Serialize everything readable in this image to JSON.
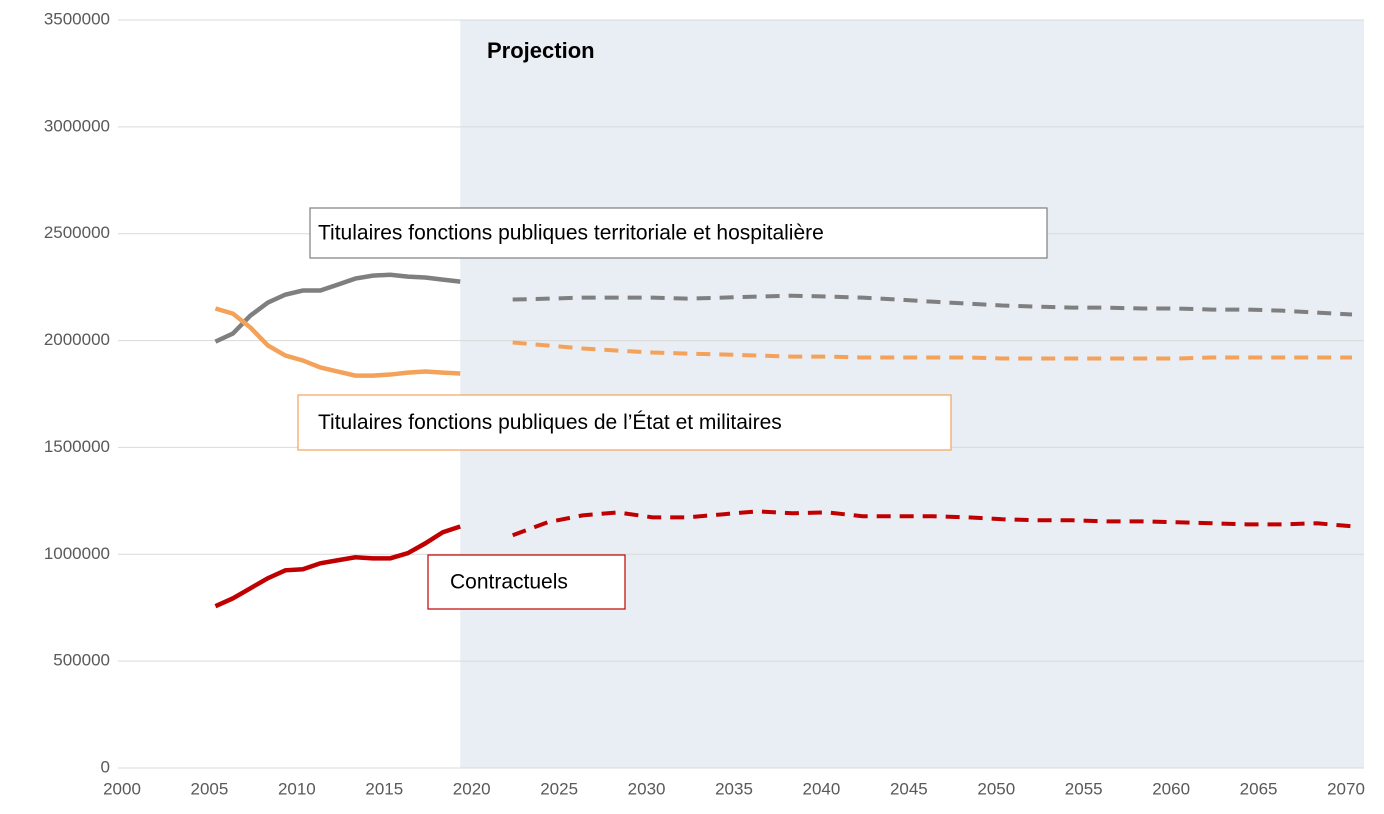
{
  "chart_data": {
    "type": "line",
    "annotation": "Projection",
    "x": [
      2005,
      2006,
      2007,
      2008,
      2009,
      2010,
      2011,
      2012,
      2013,
      2014,
      2015,
      2016,
      2017,
      2018,
      2019,
      2020,
      2022,
      2024,
      2026,
      2028,
      2030,
      2032,
      2034,
      2036,
      2038,
      2040,
      2042,
      2044,
      2046,
      2048,
      2050,
      2052,
      2054,
      2056,
      2058,
      2060,
      2062,
      2064,
      2066,
      2068,
      2070
    ],
    "series": [
      {
        "name": "Titulaires fonctions publiques territoriale et hospitalière",
        "color": "#7f7f7f",
        "values": [
          1995000,
          2033000,
          2117000,
          2178000,
          2215000,
          2234000,
          2234000,
          2262000,
          2290000,
          2304000,
          2308000,
          2299000,
          2295000,
          2285000,
          2276000,
          null,
          2192000,
          2196000,
          2201000,
          2201000,
          2201000,
          2196000,
          2201000,
          2206000,
          2210000,
          2206000,
          2201000,
          2192000,
          2182000,
          2173000,
          2164000,
          2159000,
          2154000,
          2154000,
          2150000,
          2150000,
          2145000,
          2145000,
          2140000,
          2131000,
          2122000
        ]
      },
      {
        "name": "Titulaires fonctions publiques de l’État et militaires",
        "color": "#f4a259",
        "values": [
          2150000,
          2126000,
          2061000,
          1977000,
          1930000,
          1907000,
          1874000,
          1855000,
          1836000,
          1836000,
          1841000,
          1850000,
          1855000,
          1850000,
          1846000,
          null,
          1991000,
          1977000,
          1963000,
          1953000,
          1944000,
          1939000,
          1935000,
          1930000,
          1925000,
          1925000,
          1921000,
          1921000,
          1921000,
          1921000,
          1916000,
          1916000,
          1916000,
          1916000,
          1916000,
          1916000,
          1921000,
          1921000,
          1921000,
          1921000,
          1921000
        ]
      },
      {
        "name": "Contractuels",
        "color": "#c00000",
        "values": [
          757000,
          794000,
          841000,
          888000,
          925000,
          930000,
          958000,
          972000,
          986000,
          981000,
          981000,
          1005000,
          1051000,
          1103000,
          1130000,
          null,
          1089000,
          1150000,
          1182000,
          1196000,
          1173000,
          1173000,
          1187000,
          1201000,
          1192000,
          1196000,
          1178000,
          1178000,
          1178000,
          1173000,
          1164000,
          1159000,
          1159000,
          1154000,
          1154000,
          1150000,
          1145000,
          1140000,
          1140000,
          1145000,
          1131000
        ]
      }
    ],
    "xlim": [
      2000,
      2070
    ],
    "xticks": [
      2000,
      2005,
      2010,
      2015,
      2020,
      2025,
      2030,
      2035,
      2040,
      2045,
      2050,
      2055,
      2060,
      2065,
      2070
    ],
    "ylim": [
      0,
      3500000
    ],
    "yticks": [
      0,
      500000,
      1000000,
      1500000,
      2000000,
      2500000,
      3000000,
      3500000
    ],
    "grid": true
  }
}
